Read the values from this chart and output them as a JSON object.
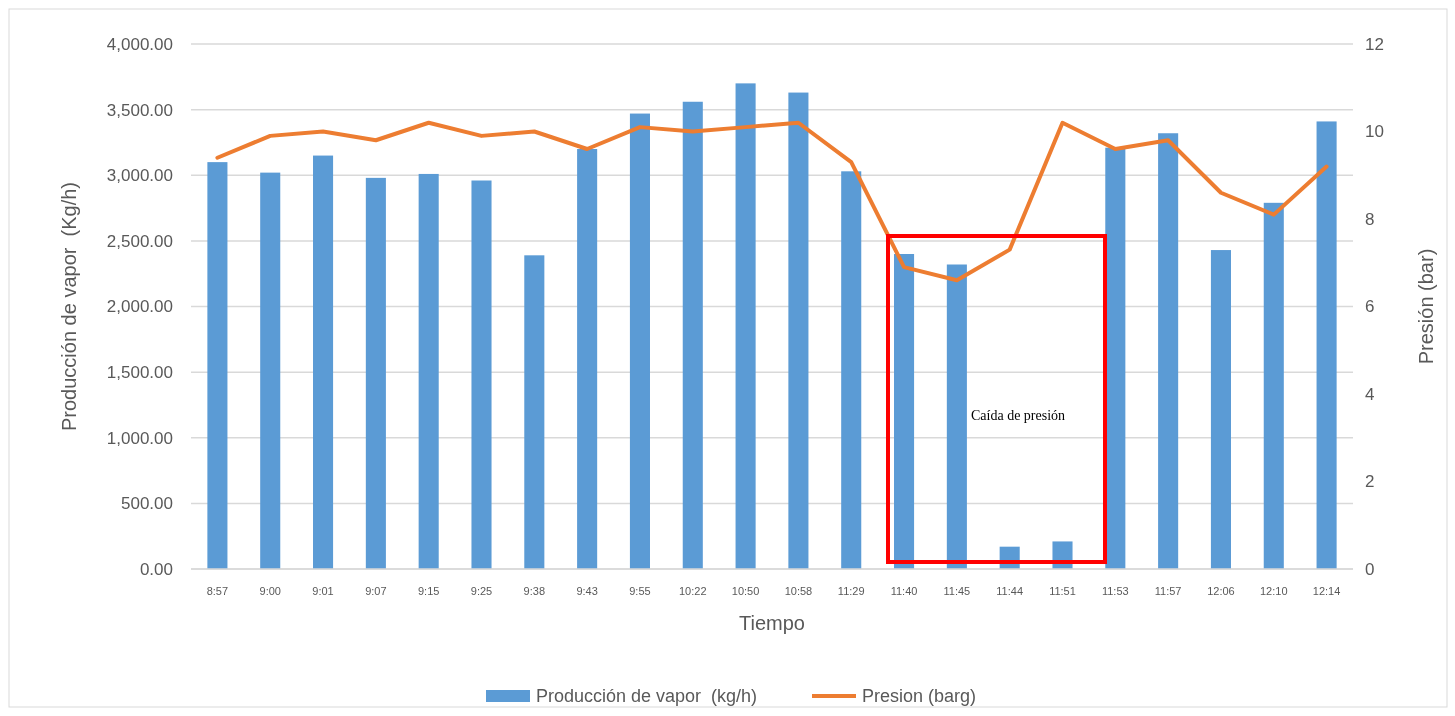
{
  "chart_data": {
    "type": "bar",
    "xlabel": "Tiempo",
    "ylabel": "Producción de vapor  (Kg/h)",
    "y2label": "Presión (bar)",
    "categories": [
      "8:57",
      "9:00",
      "9:01",
      "9:07",
      "9:15",
      "9:25",
      "9:38",
      "9:43",
      "9:55",
      "10:22",
      "10:50",
      "10:58",
      "11:29",
      "11:40",
      "11:45",
      "11:44",
      "11:51",
      "11:53",
      "11:57",
      "12:06",
      "12:10",
      "12:14"
    ],
    "series": [
      {
        "name": "Producción de vapor  (kg/h)",
        "color": "#5b9bd5",
        "values": [
          3100,
          3020,
          3150,
          2980,
          3010,
          2960,
          2390,
          3200,
          3470,
          3560,
          3700,
          3630,
          3030,
          2400,
          2320,
          170,
          210,
          3210,
          3320,
          2430,
          2790,
          3410
        ]
      },
      {
        "name": "Presion (barg)",
        "type": "line",
        "axis": "y2",
        "color": "#ed7d31",
        "values": [
          9.4,
          9.9,
          10.0,
          9.8,
          10.2,
          9.9,
          10.0,
          9.6,
          10.1,
          10.0,
          10.1,
          10.2,
          9.3,
          6.9,
          6.6,
          7.3,
          10.2,
          9.6,
          9.8,
          8.6,
          8.1,
          9.2
        ]
      }
    ],
    "ylim": [
      0,
      4000
    ],
    "yticks": [
      {
        "value": 0,
        "label": "0.00"
      },
      {
        "value": 500,
        "label": "500.00"
      },
      {
        "value": 1000,
        "label": "1,000.00"
      },
      {
        "value": 1500,
        "label": "1,500.00"
      },
      {
        "value": 2000,
        "label": "2,000.00"
      },
      {
        "value": 2500,
        "label": "2,500.00"
      },
      {
        "value": 3000,
        "label": "3,000.00"
      },
      {
        "value": 3500,
        "label": "3,500.00"
      },
      {
        "value": 4000,
        "label": "4,000.00"
      }
    ],
    "y2lim": [
      0,
      12
    ],
    "y2ticks": [
      0,
      2,
      4,
      6,
      8,
      10,
      12
    ],
    "annotations": [
      "Caída de presión"
    ],
    "grid": "y",
    "legend": "bottom"
  }
}
